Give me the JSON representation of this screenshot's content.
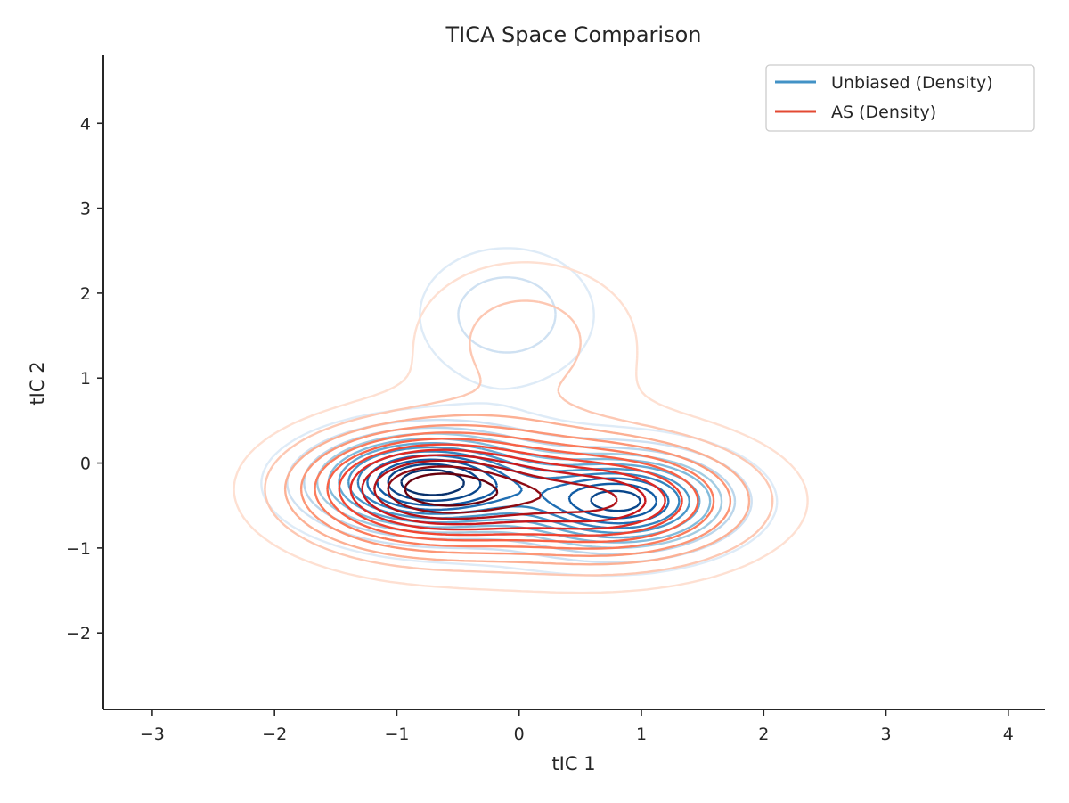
{
  "chart_data": {
    "type": "contour",
    "title": "TICA Space Comparison",
    "xlabel": "tIC 1",
    "ylabel": "tIC 2",
    "xlim": [
      -3.4,
      4.3
    ],
    "ylim": [
      -2.9,
      4.8
    ],
    "x_ticks": [
      -3,
      -2,
      -1,
      0,
      1,
      2,
      3,
      4
    ],
    "y_ticks": [
      -2,
      -1,
      0,
      1,
      2,
      3,
      4
    ],
    "x_tick_labels": [
      "−3",
      "−2",
      "−1",
      "0",
      "1",
      "2",
      "3",
      "4"
    ],
    "y_tick_labels": [
      "−2",
      "−1",
      "0",
      "1",
      "2",
      "3",
      "4"
    ],
    "grid": false,
    "legend_position": "upper-right",
    "contour_levels": 12,
    "series": [
      {
        "name": "Unbiased (Density)",
        "color": "#4292c6",
        "colormap": "Blues",
        "components": [
          {
            "mean": [
              -0.75,
              -0.22
            ],
            "sd": [
              0.58,
              0.36
            ],
            "weight": 0.4
          },
          {
            "mean": [
              0.85,
              -0.45
            ],
            "sd": [
              0.55,
              0.36
            ],
            "weight": 0.33
          },
          {
            "mean": [
              -0.1,
              1.75
            ],
            "sd": [
              0.5,
              0.55
            ],
            "weight": 0.12
          },
          {
            "mean": [
              0.0,
              -0.5
            ],
            "sd": [
              1.2,
              0.7
            ],
            "weight": 0.15
          }
        ]
      },
      {
        "name": "AS (Density)",
        "color": "#e34a33",
        "colormap": "Reds",
        "components": [
          {
            "mean": [
              -0.75,
              -0.3
            ],
            "sd": [
              0.68,
              0.45
            ],
            "weight": 0.4
          },
          {
            "mean": [
              0.8,
              -0.45
            ],
            "sd": [
              0.7,
              0.45
            ],
            "weight": 0.3
          },
          {
            "mean": [
              0.05,
              1.5
            ],
            "sd": [
              0.65,
              0.65
            ],
            "weight": 0.12
          },
          {
            "mean": [
              0.1,
              -0.4
            ],
            "sd": [
              1.35,
              0.85
            ],
            "weight": 0.18
          }
        ]
      }
    ]
  }
}
